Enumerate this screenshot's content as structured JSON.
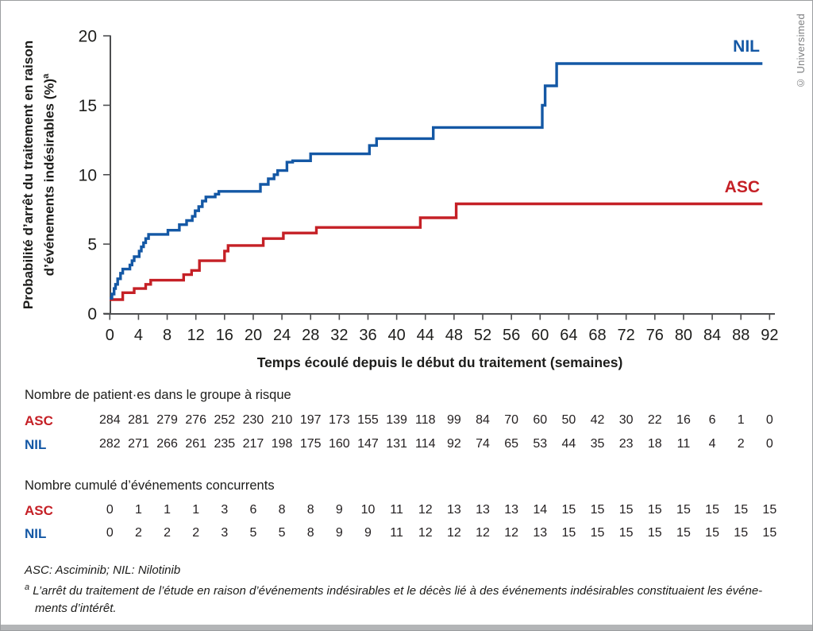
{
  "copyright": "© Universimed",
  "y_axis": {
    "label_line1": "Probabilité d’arrêt du traitement en raison",
    "label_line2": "d’événements indésirables (%)",
    "label_superscript": "a",
    "ticks": [
      0,
      5,
      10,
      15,
      20
    ]
  },
  "x_axis": {
    "title": "Temps écoulé depuis le début du traitement (semaines)",
    "ticks": [
      0,
      4,
      8,
      12,
      16,
      20,
      24,
      28,
      32,
      36,
      40,
      44,
      48,
      52,
      56,
      60,
      64,
      68,
      72,
      76,
      80,
      84,
      88,
      92
    ]
  },
  "chart_data": {
    "type": "line",
    "subtype": "step",
    "title": "",
    "xlabel": "Temps écoulé depuis le début du traitement (semaines)",
    "ylabel": "Probabilité d’arrêt du traitement en raison d’événements indésirables (%)",
    "xlim": [
      0,
      92
    ],
    "ylim": [
      0,
      20
    ],
    "grid": false,
    "legend_position": "end-of-line",
    "series": [
      {
        "name": "NIL",
        "color": "#1458A5",
        "points": [
          [
            0,
            1.1
          ],
          [
            0.3,
            1.4
          ],
          [
            0.6,
            1.8
          ],
          [
            0.8,
            2.1
          ],
          [
            1.1,
            2.5
          ],
          [
            1.5,
            2.9
          ],
          [
            1.8,
            3.2
          ],
          [
            2.8,
            3.5
          ],
          [
            3.1,
            3.8
          ],
          [
            3.4,
            4.1
          ],
          [
            4.1,
            4.5
          ],
          [
            4.4,
            4.8
          ],
          [
            4.7,
            5.1
          ],
          [
            5.0,
            5.4
          ],
          [
            5.4,
            5.7
          ],
          [
            8.1,
            6.0
          ],
          [
            9.7,
            6.4
          ],
          [
            10.7,
            6.7
          ],
          [
            11.5,
            7.0
          ],
          [
            11.9,
            7.4
          ],
          [
            12.4,
            7.7
          ],
          [
            12.9,
            8.1
          ],
          [
            13.4,
            8.4
          ],
          [
            14.7,
            8.6
          ],
          [
            15.2,
            8.8
          ],
          [
            21.0,
            9.3
          ],
          [
            22.1,
            9.7
          ],
          [
            22.9,
            10.0
          ],
          [
            23.4,
            10.3
          ],
          [
            24.7,
            10.9
          ],
          [
            25.5,
            11.0
          ],
          [
            28.0,
            11.5
          ],
          [
            36.2,
            12.1
          ],
          [
            37.2,
            12.6
          ],
          [
            45.1,
            13.4
          ],
          [
            60.3,
            15.0
          ],
          [
            60.7,
            16.4
          ],
          [
            62.3,
            18.0
          ],
          [
            91.0,
            18.0
          ]
        ]
      },
      {
        "name": "ASC",
        "color": "#C52026",
        "points": [
          [
            0,
            1.0
          ],
          [
            1.8,
            1.5
          ],
          [
            3.4,
            1.8
          ],
          [
            5.0,
            2.1
          ],
          [
            5.7,
            2.4
          ],
          [
            10.3,
            2.8
          ],
          [
            11.4,
            3.1
          ],
          [
            12.5,
            3.8
          ],
          [
            16.0,
            4.5
          ],
          [
            16.5,
            4.9
          ],
          [
            21.4,
            5.4
          ],
          [
            24.2,
            5.8
          ],
          [
            28.8,
            6.2
          ],
          [
            43.3,
            6.9
          ],
          [
            48.3,
            7.9
          ],
          [
            91.0,
            7.9
          ]
        ]
      }
    ]
  },
  "risk_table": {
    "title": "Nombre de patient·es dans le groupe à risque",
    "rows": [
      {
        "label": "ASC",
        "color": "#C52026",
        "values": [
          284,
          281,
          279,
          276,
          252,
          230,
          210,
          197,
          173,
          155,
          139,
          118,
          99,
          84,
          70,
          60,
          50,
          42,
          30,
          22,
          16,
          6,
          1,
          0
        ]
      },
      {
        "label": "NIL",
        "color": "#1458A5",
        "values": [
          282,
          271,
          266,
          261,
          235,
          217,
          198,
          175,
          160,
          147,
          131,
          114,
          92,
          74,
          65,
          53,
          44,
          35,
          23,
          18,
          11,
          4,
          2,
          0
        ]
      }
    ]
  },
  "events_table": {
    "title": "Nombre cumulé d’événements concurrents",
    "rows": [
      {
        "label": "ASC",
        "color": "#C52026",
        "values": [
          0,
          1,
          1,
          1,
          3,
          6,
          8,
          8,
          9,
          10,
          11,
          12,
          13,
          13,
          13,
          14,
          15,
          15,
          15,
          15,
          15,
          15,
          15,
          15
        ]
      },
      {
        "label": "NIL",
        "color": "#1458A5",
        "values": [
          0,
          2,
          2,
          2,
          3,
          5,
          5,
          8,
          9,
          9,
          11,
          12,
          12,
          12,
          12,
          13,
          15,
          15,
          15,
          15,
          15,
          15,
          15,
          15
        ]
      }
    ]
  },
  "footnotes": {
    "abbreviations": "ASC: Asciminib; NIL: Nilotinib",
    "note_superscript": "a",
    "note_line1": "L’arrêt du traitement de l’étude en raison d’événements indésirables et le décès lié à des événements indésirables constituaient les événe-",
    "note_line2": "ments d’intérêt."
  }
}
